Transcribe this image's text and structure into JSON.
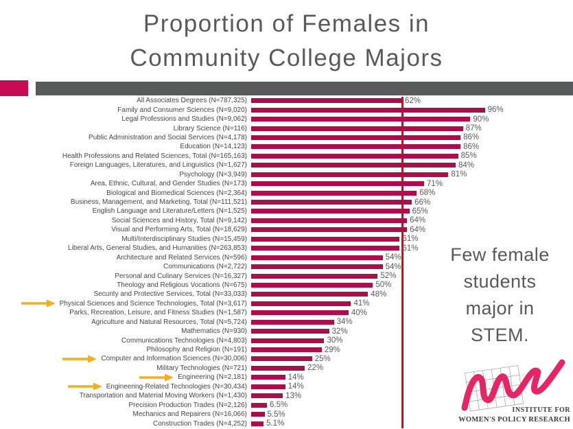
{
  "slide": {
    "title_lines": [
      "Proportion of Females in",
      "Community College Majors"
    ]
  },
  "annotation": {
    "lines": [
      "Few female",
      "students",
      "major in",
      "STEM."
    ]
  },
  "logo": {
    "line1": "INSTITUTE FOR",
    "line2": "WOMEN'S POLICY RESEARCH"
  },
  "colors": {
    "bar": "#AE0D4C",
    "reference_line": "#EE0000",
    "arrow": "#F2AE1C",
    "title_gray": "#595959",
    "header_bar_gray": "#58595B",
    "header_accent_crimson": "#C60B52",
    "logo_pink": "#E72565"
  },
  "chart_data": {
    "type": "bar",
    "orientation": "horizontal",
    "title": "Proportion of Females in Community College Majors",
    "xlabel": "",
    "ylabel": "",
    "xlim": [
      0,
      100
    ],
    "unit": "percent",
    "grid": false,
    "legend": "none",
    "reference_line_value": 62,
    "arrow_rows": [
      22,
      28,
      30,
      31
    ],
    "highlighted_categories": [
      "Physical Sciences and Science Technologies, Total (N=3,617)",
      "Computer and Information Sciences (N=30,006)",
      "Engineering (N=2,181)",
      "Engineering-Related Technologies (N=30,434)"
    ],
    "categories": [
      "All Associates Degrees (N=787,325)",
      "Family and Consumer Sciences (N=9,020)",
      "Legal Professions and Studies (N=9,062)",
      "Library Science (N=116)",
      "Public Administration and Social Services (N=4,178)",
      "Education (N=14,123)",
      "Health Professions and Related Sciences, Total (N=165,163)",
      "Foreign Languages, Literatures, and Linguistics (N=1,627)",
      "Psychology (N=3,949)",
      "Area, Ethnic, Cultural, and Gender Studies (N=173)",
      "Biological and Biomedical Sciences (N=2,364)",
      "Business, Management, and Marketing, Total (N=111,521)",
      "English Language and Literature/Letters (N=1,525)",
      "Social Sciences and History, Total (N=9,142)",
      "Visual and Performing Arts, Total (N=18,629)",
      "Multi/Interdisciplinary Studies (N=15,459)",
      "Liberal Arts, General Studies, and Humanities (N=263,853)",
      "Architecture and Related Services (N=596)",
      "Communications (N=2,722)",
      "Personal and Culinary Services (N=16,327)",
      "Theology and Religious Vocations (N=675)",
      "Security and Protective Services, Total (N=33,033)",
      "Physical Sciences and Science Technologies, Total (N=3,617)",
      "Parks, Recreation, Leisure, and Fitness Studies (N=1,587)",
      "Agriculture and Natural Resources, Total (N=5,724)",
      "Mathematics (N=930)",
      "Communications Technologies (N=4,803)",
      "Philosophy and Religion (N=191)",
      "Computer and Information Sciences (N=30,006)",
      "Military Technologies (N=721)",
      "Engineering (N=2,181)",
      "Engineering-Related Technologies (N=30,434)",
      "Transportation and Material Moving Workers (N=1,430)",
      "Precision Production Trades (N=2,126)",
      "Mechanics and Repairers (N=16,066)",
      "Construction Trades (N=4,252)"
    ],
    "values": [
      62,
      96,
      90,
      87,
      86,
      86,
      85,
      84,
      81,
      71,
      68,
      66,
      65,
      64,
      64,
      61,
      61,
      54,
      54,
      52,
      50,
      48,
      41,
      40,
      34,
      32,
      30,
      29,
      25,
      22,
      14,
      14,
      13,
      6.5,
      5.5,
      5.1
    ],
    "value_labels": [
      "62%",
      "96%",
      "90%",
      "87%",
      "86%",
      "86%",
      "85%",
      "84%",
      "81%",
      "71%",
      "68%",
      "66%",
      "65%",
      "64%",
      "64%",
      "61%",
      "61%",
      "54%",
      "54%",
      "52%",
      "50%",
      "48%",
      "41%",
      "40%",
      "34%",
      "32%",
      "30%",
      "29%",
      "25%",
      "22%",
      "14%",
      "14%",
      "13%",
      "6.5%",
      "5.5%",
      "5.1%"
    ]
  }
}
